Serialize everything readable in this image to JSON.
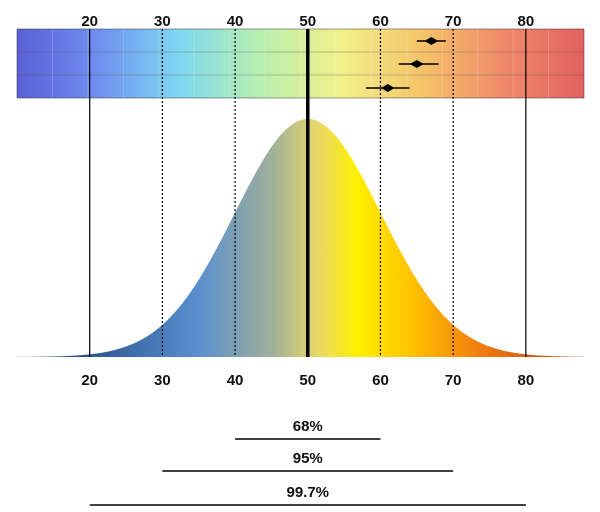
{
  "chart_data": {
    "type": "area",
    "distribution": "normal",
    "mean": 50,
    "sd": 10,
    "xlim": [
      10,
      88
    ],
    "x_ticks_top": [
      20,
      30,
      40,
      50,
      60,
      70,
      80
    ],
    "x_ticks_bottom": [
      20,
      30,
      40,
      50,
      60,
      70,
      80
    ],
    "vertical_lines": [
      {
        "x": 20,
        "style": "solid"
      },
      {
        "x": 30,
        "style": "dotted"
      },
      {
        "x": 40,
        "style": "dotted"
      },
      {
        "x": 50,
        "style": "solid-bold"
      },
      {
        "x": 60,
        "style": "dotted"
      },
      {
        "x": 70,
        "style": "dotted"
      },
      {
        "x": 80,
        "style": "solid"
      }
    ],
    "color_band": {
      "description": "spectrum color band from blue (low) to red (high)",
      "colors": [
        "#5a5fd6",
        "#6f8ff0",
        "#7fd8f2",
        "#b8f0b0",
        "#f2f08a",
        "#f5c46a",
        "#f08a6a",
        "#e26060"
      ]
    },
    "point_estimates": [
      {
        "value": 67,
        "ci": [
          65,
          69
        ]
      },
      {
        "value": 65,
        "ci": [
          62.5,
          68
        ]
      },
      {
        "value": 61,
        "ci": [
          58,
          64
        ]
      }
    ],
    "ranges": [
      {
        "label": "68%",
        "from": 40,
        "to": 60
      },
      {
        "label": "95%",
        "from": 30,
        "to": 70
      },
      {
        "label": "99.7%",
        "from": 20,
        "to": 80
      }
    ]
  }
}
